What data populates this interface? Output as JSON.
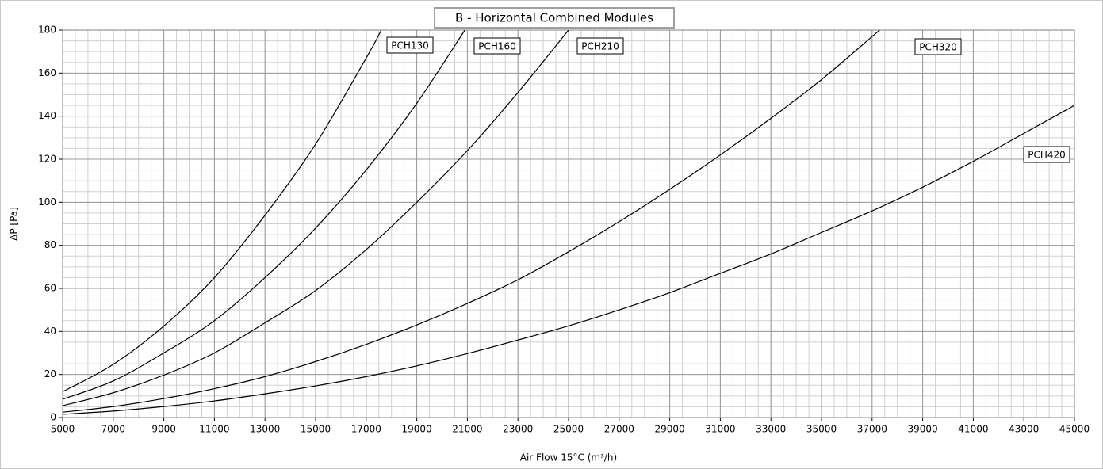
{
  "chart_data": {
    "type": "line",
    "title": "B - Horizontal Combined Modules",
    "xlabel": "Air Flow 15°C (m³/h)",
    "ylabel": "ΔP [Pa]",
    "xlim": [
      5000,
      45000
    ],
    "ylim": [
      0,
      180
    ],
    "xticks": [
      5000,
      7000,
      9000,
      11000,
      13000,
      15000,
      17000,
      19000,
      21000,
      23000,
      25000,
      27000,
      29000,
      31000,
      33000,
      35000,
      37000,
      39000,
      41000,
      43000,
      45000
    ],
    "yticks": [
      0,
      20,
      40,
      60,
      80,
      100,
      120,
      140,
      160,
      180
    ],
    "grid": true,
    "minor_grid": {
      "x": 500,
      "y": 5
    },
    "color": "#000000",
    "series": [
      {
        "name": "PCH130",
        "x": [
          5000,
          7000,
          9000,
          11000,
          13000,
          15000,
          17000,
          17600
        ],
        "values": [
          12,
          24.7,
          42.5,
          65,
          94,
          127,
          167,
          180
        ]
      },
      {
        "name": "PCH160",
        "x": [
          5000,
          7000,
          9000,
          11000,
          13000,
          15000,
          17000,
          19000,
          20900
        ],
        "values": [
          8.5,
          17,
          30,
          45,
          65,
          88,
          115,
          146,
          180
        ]
      },
      {
        "name": "PCH210",
        "x": [
          5000,
          7000,
          9000,
          11000,
          13000,
          15000,
          17000,
          19000,
          21000,
          23000,
          25000
        ],
        "values": [
          5.5,
          11.5,
          19.7,
          30,
          44,
          59,
          78,
          100,
          124,
          151,
          180
        ]
      },
      {
        "name": "PCH320",
        "x": [
          5000,
          7000,
          9000,
          11000,
          13000,
          15000,
          17000,
          19000,
          21000,
          23000,
          25000,
          27000,
          29000,
          31000,
          33000,
          35000,
          37000,
          37300
        ],
        "values": [
          2.5,
          5.1,
          8.8,
          13.4,
          19,
          26,
          34,
          43,
          53,
          64,
          77,
          91,
          106,
          122,
          139,
          157,
          177,
          180
        ]
      },
      {
        "name": "PCH420",
        "x": [
          5000,
          7000,
          9000,
          11000,
          13000,
          15000,
          17000,
          19000,
          21000,
          23000,
          25000,
          27000,
          29000,
          31000,
          33000,
          35000,
          37000,
          39000,
          41000,
          43000,
          45000
        ],
        "values": [
          1.5,
          3,
          5.1,
          7.7,
          11,
          14.7,
          19,
          24,
          29.7,
          36,
          42.6,
          50,
          58,
          67,
          76,
          86,
          96,
          107,
          119,
          132,
          145
        ]
      }
    ]
  }
}
